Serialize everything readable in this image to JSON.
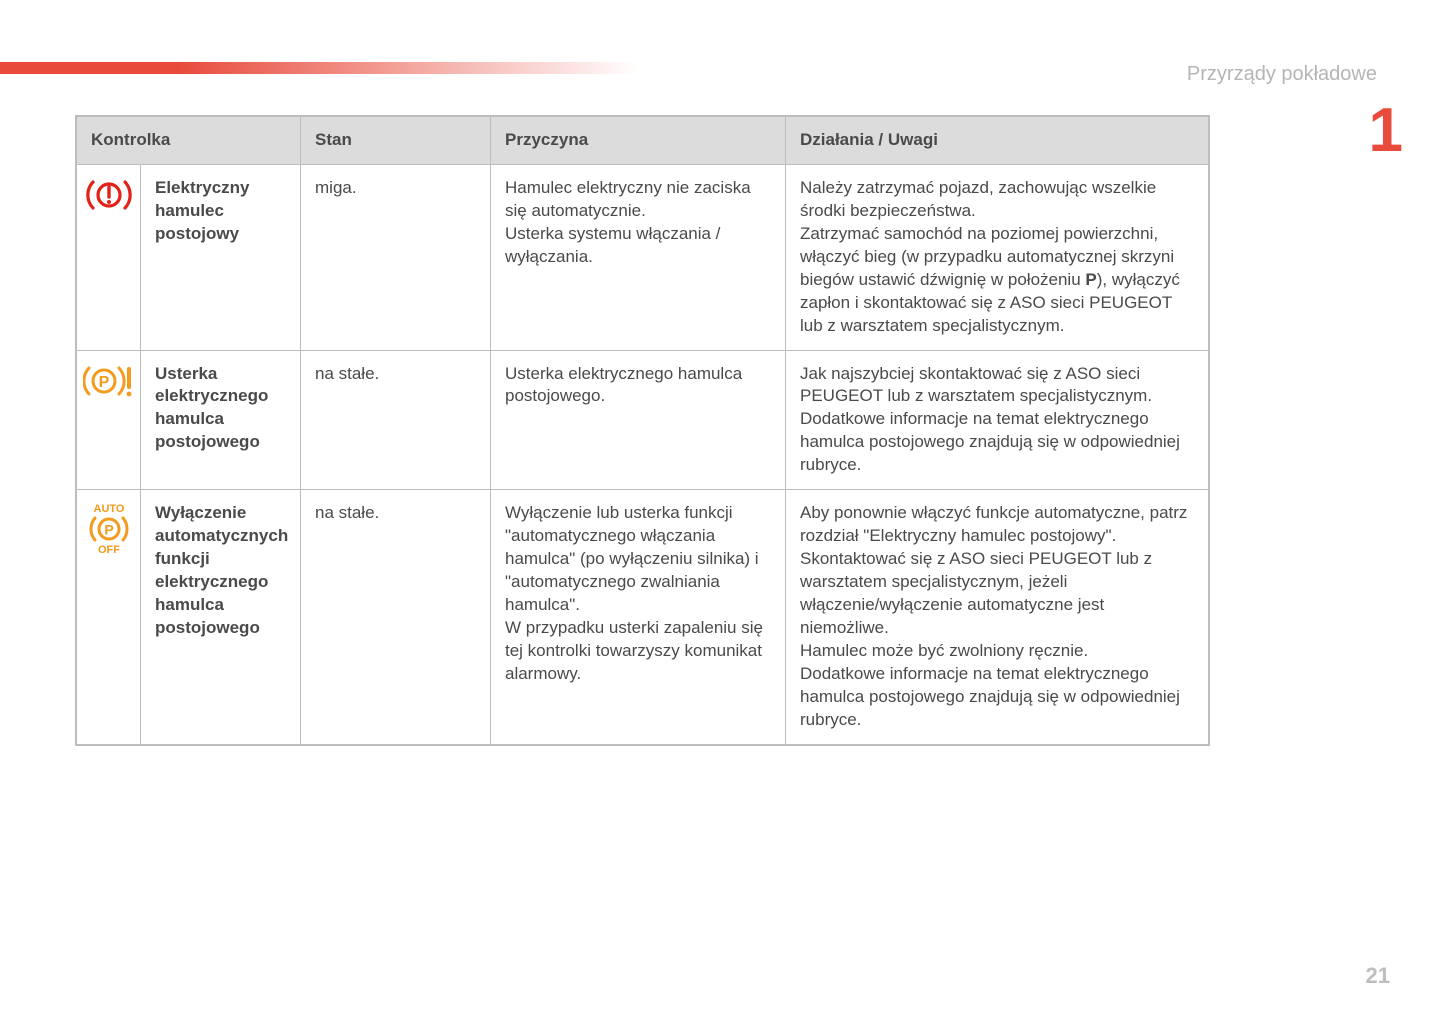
{
  "header": {
    "section_label": "Przyrządy pokładowe",
    "section_number": "1",
    "page_number": "21"
  },
  "colors": {
    "accent_red": "#e84b3c",
    "icon_red": "#e32119",
    "icon_amber": "#f29b1e",
    "border_gray": "#bdbdbd",
    "header_bg": "#dcdcdc",
    "text_gray": "#4a4a4a",
    "muted_gray": "#b5b5b5"
  },
  "table": {
    "columns": [
      "Kontrolka",
      "Stan",
      "Przyczyna",
      "Działania / Uwagi"
    ],
    "rows": [
      {
        "icon": "brake-exclaim-red",
        "name": "Elektryczny hamulec postojowy",
        "stan": "miga.",
        "cause": "Hamulec elektryczny nie zaciska się automatycznie.\nUsterka systemu włączania / wyłączania.",
        "action_pre": "Należy zatrzymać pojazd, zachowując wszelkie środki bezpieczeństwa.\nZatrzymać samochód na poziomej powierzchni, włączyć bieg (w przypadku automatycznej skrzyni biegów ustawić dźwignię w położeniu ",
        "action_bold": "P",
        "action_post": "), wyłączyć zapłon i skontaktować się z ASO sieci PEUGEOT lub z warsztatem specjalistycznym."
      },
      {
        "icon": "park-p-warning-amber",
        "name": "Usterka elektrycznego hamulca postojowego",
        "stan": "na stałe.",
        "cause": "Usterka elektrycznego hamulca postojowego.",
        "action": "Jak najszybciej skontaktować się z ASO sieci PEUGEOT lub z warsztatem specjalistycznym.\nDodatkowe informacje na temat elektrycznego hamulca postojowego znajdują się w odpowiedniej rubryce."
      },
      {
        "icon": "auto-p-off-amber",
        "name": "Wyłączenie automatycznych funkcji elektrycznego hamulca postojowego",
        "stan": "na stałe.",
        "cause": "Wyłączenie lub usterka funkcji \"automatycznego włączania hamulca\" (po wyłączeniu silnika) i \"automatycznego zwalniania hamulca\".\nW przypadku usterki zapaleniu się tej kontrolki towarzyszy komunikat alarmowy.",
        "action": "Aby ponownie włączyć funkcje automatyczne, patrz rozdział \"Elektryczny hamulec postojowy\".\nSkontaktować się z ASO sieci PEUGEOT lub z warsztatem specjalistycznym, jeżeli włączenie/wyłączenie automatyczne jest niemożliwe.\nHamulec może być zwolniony ręcznie.\nDodatkowe informacje na temat elektrycznego hamulca postojowego znajdują się w odpowiedniej rubryce."
      }
    ]
  }
}
